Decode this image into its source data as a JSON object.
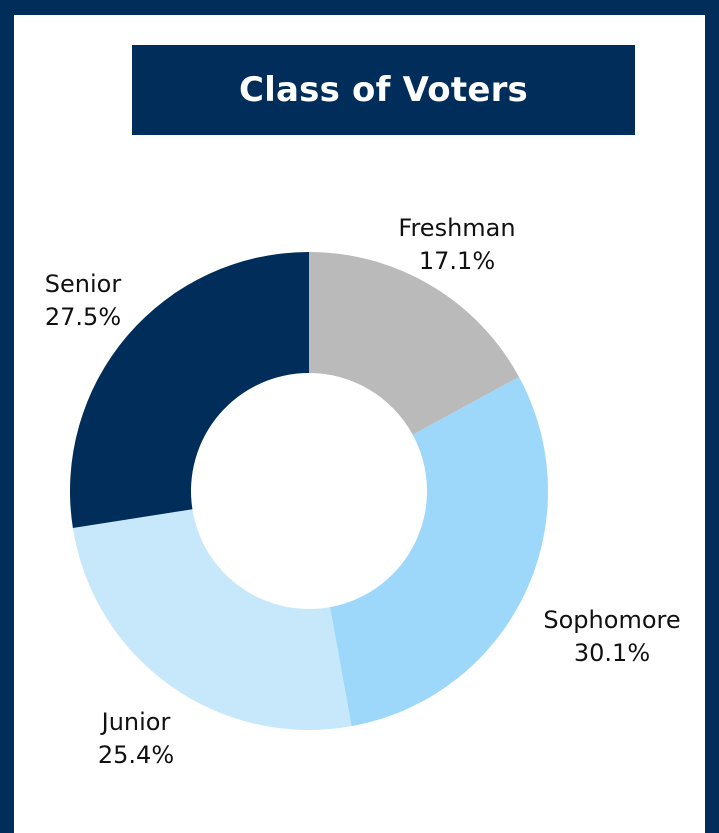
{
  "chart_data": {
    "type": "pie",
    "variant": "donut",
    "title": "Class of Voters",
    "categories": [
      "Freshman",
      "Sophomore",
      "Junior",
      "Senior"
    ],
    "values": [
      17.1,
      30.1,
      25.4,
      27.5
    ],
    "value_labels": [
      "17.1%",
      "30.1%",
      "25.4%",
      "27.5%"
    ],
    "colors": [
      "#bababa",
      "#9dd8fa",
      "#c7e8fb",
      "#012d5a"
    ],
    "legend": "none",
    "start_angle": "top, clockwise"
  },
  "colors": {
    "frame": "#012d5a",
    "panel": "#ffffff",
    "title_bg": "#012d5a",
    "title_text": "#ffffff"
  }
}
